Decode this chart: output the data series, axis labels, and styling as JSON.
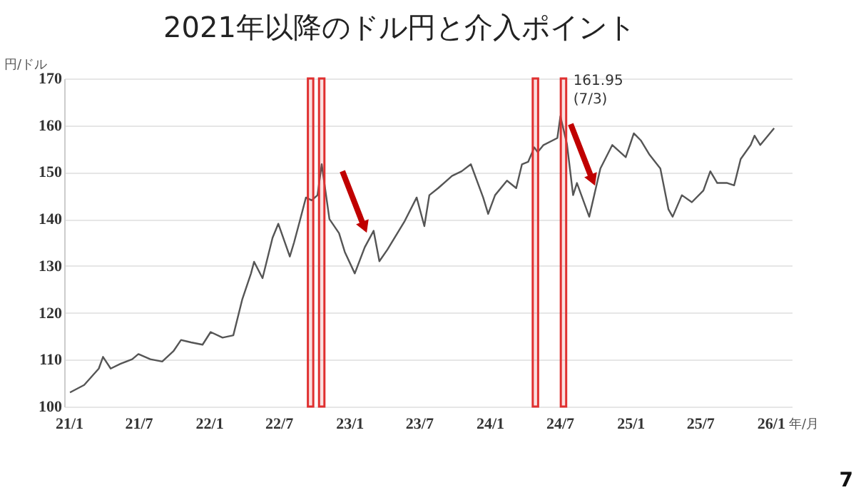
{
  "chart_data": {
    "type": "line",
    "title": "2021年以降のドル円と介入ポイント",
    "xlabel": "年/月",
    "ylabel": "円/ドル",
    "x": [
      "2021-01-04",
      "2021-02-10",
      "2021-03-20",
      "2021-03-31",
      "2021-04-20",
      "2021-05-15",
      "2021-06-15",
      "2021-07-01",
      "2021-08-01",
      "2021-09-01",
      "2021-09-30",
      "2021-10-20",
      "2021-11-15",
      "2021-12-15",
      "2022-01-05",
      "2022-02-05",
      "2022-03-05",
      "2022-03-28",
      "2022-04-20",
      "2022-04-28",
      "2022-05-20",
      "2022-06-15",
      "2022-06-30",
      "2022-07-30",
      "2022-08-10",
      "2022-08-25",
      "2022-09-10",
      "2022-09-25",
      "2022-10-10",
      "2022-10-21",
      "2022-11-10",
      "2022-12-05",
      "2022-12-20",
      "2023-01-15",
      "2023-02-10",
      "2023-03-05",
      "2023-03-20",
      "2023-04-10",
      "2023-05-25",
      "2023-06-25",
      "2023-07-15",
      "2023-07-28",
      "2023-08-20",
      "2023-09-25",
      "2023-10-20",
      "2023-11-13",
      "2023-12-15",
      "2023-12-28",
      "2024-01-15",
      "2024-02-15",
      "2024-03-10",
      "2024-03-25",
      "2024-04-10",
      "2024-04-26",
      "2024-05-05",
      "2024-05-20",
      "2024-06-25",
      "2024-07-03",
      "2024-07-20",
      "2024-08-05",
      "2024-08-15",
      "2024-09-16",
      "2024-10-15",
      "2024-11-15",
      "2024-12-20",
      "2025-01-10",
      "2025-01-28",
      "2025-02-20",
      "2025-03-20",
      "2025-04-10",
      "2025-04-21",
      "2025-05-15",
      "2025-06-10",
      "2025-07-10",
      "2025-07-28",
      "2025-08-15",
      "2025-09-10",
      "2025-09-28",
      "2025-10-15",
      "2025-11-10",
      "2025-11-20",
      "2025-12-05",
      "2026-01-10"
    ],
    "series": [
      {
        "color": "#555555",
        "values": [
          103.0,
          104.6,
          108.1,
          110.6,
          108.1,
          109.1,
          110.1,
          111.2,
          110.1,
          109.6,
          111.8,
          114.2,
          113.7,
          113.2,
          115.9,
          114.7,
          115.2,
          122.8,
          128.4,
          130.9,
          127.4,
          136.0,
          139.0,
          132.0,
          135.0,
          139.6,
          144.6,
          144.0,
          145.1,
          151.7,
          140.0,
          137.0,
          133.0,
          128.4,
          134.0,
          137.5,
          131.0,
          133.5,
          139.6,
          144.6,
          138.5,
          145.1,
          146.6,
          149.2,
          150.2,
          151.7,
          144.6,
          141.1,
          145.1,
          148.2,
          146.6,
          151.7,
          152.2,
          155.3,
          154.3,
          155.8,
          157.3,
          161.95,
          156.0,
          145.1,
          147.7,
          140.5,
          150.8,
          155.8,
          153.2,
          158.3,
          156.8,
          153.7,
          150.8,
          142.1,
          140.5,
          145.1,
          143.6,
          146.1,
          150.2,
          147.7,
          147.7,
          147.2,
          152.8,
          155.8,
          157.8,
          155.8,
          159.4
        ]
      }
    ],
    "xlim": [
      "2020-12-20",
      "2026-02-25"
    ],
    "xticks": [
      {
        "value": "2021-01-01",
        "label": "21/1"
      },
      {
        "value": "2021-07-01",
        "label": "21/7"
      },
      {
        "value": "2022-01-01",
        "label": "22/1"
      },
      {
        "value": "2022-07-01",
        "label": "22/7"
      },
      {
        "value": "2023-01-01",
        "label": "23/1"
      },
      {
        "value": "2023-07-01",
        "label": "23/7"
      },
      {
        "value": "2024-01-01",
        "label": "24/1"
      },
      {
        "value": "2024-07-01",
        "label": "24/7"
      },
      {
        "value": "2025-01-01",
        "label": "25/1"
      },
      {
        "value": "2025-07-01",
        "label": "25/7"
      },
      {
        "value": "2026-01-01",
        "label": "26/1"
      }
    ],
    "ylim": [
      100,
      170
    ],
    "yticks": [
      100,
      110,
      120,
      130,
      140,
      150,
      160,
      170
    ],
    "grid": "y",
    "marker": "none",
    "line_style": "solid",
    "bands": [
      {
        "axis": "x",
        "from": "2022-09-15",
        "to": "2022-09-29",
        "color": "#e03030"
      },
      {
        "axis": "x",
        "from": "2022-10-14",
        "to": "2022-10-28",
        "color": "#e03030"
      },
      {
        "axis": "x",
        "from": "2024-04-22",
        "to": "2024-05-06",
        "color": "#e03030"
      },
      {
        "axis": "x",
        "from": "2024-07-04",
        "to": "2024-07-18",
        "color": "#e03030"
      }
    ],
    "annotations": [
      {
        "text": "161.95\n(7/3)",
        "x": "2024-07-03",
        "y": 161.95
      },
      "7"
    ]
  }
}
